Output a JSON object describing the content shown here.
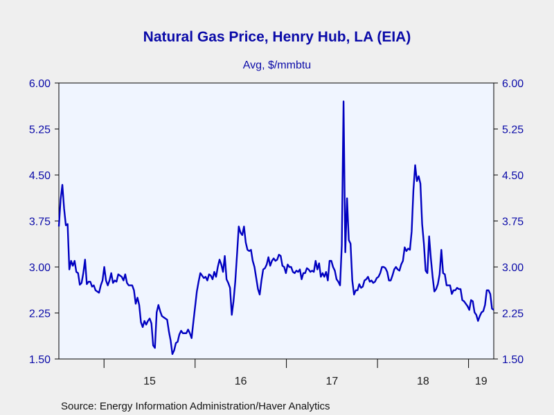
{
  "chart_data": {
    "type": "line",
    "title": "Natural Gas Price, Henry Hub, LA (EIA)",
    "subtitle": "Avg, $/mmbtu",
    "source": "Source:  Energy Information Administration/Haver Analytics",
    "ylim": [
      1.5,
      6.0
    ],
    "yticks": [
      "6.00",
      "5.25",
      "4.50",
      "3.75",
      "3.00",
      "2.25",
      "1.50"
    ],
    "x_tick_labels": [
      "15",
      "16",
      "17",
      "18",
      "19"
    ],
    "grid": false,
    "colors": {
      "line": "#0000c0",
      "plot_bg": "#f0f5ff",
      "text": "#0a0aa8",
      "page_bg": "#efefef"
    },
    "series": [
      {
        "frequency": "weekly",
        "start": "2014-07-04",
        "values": [
          3.66,
          4.1,
          4.34,
          3.95,
          3.68,
          3.7,
          2.96,
          3.1,
          3.02,
          3.1,
          2.92,
          2.9,
          2.71,
          2.74,
          2.9,
          3.12,
          2.72,
          2.76,
          2.76,
          2.68,
          2.7,
          2.62,
          2.6,
          2.58,
          2.7,
          2.78,
          3.0,
          2.78,
          2.7,
          2.78,
          2.9,
          2.74,
          2.78,
          2.76,
          2.88,
          2.86,
          2.84,
          2.78,
          2.88,
          2.74,
          2.7,
          2.7,
          2.7,
          2.62,
          2.4,
          2.5,
          2.38,
          2.1,
          2.02,
          2.12,
          2.06,
          2.12,
          2.16,
          2.08,
          1.72,
          1.68,
          2.26,
          2.38,
          2.28,
          2.2,
          2.18,
          2.16,
          2.14,
          1.95,
          1.8,
          1.58,
          1.64,
          1.76,
          1.78,
          1.9,
          1.96,
          1.92,
          1.92,
          1.92,
          1.98,
          1.92,
          1.84,
          2.1,
          2.35,
          2.6,
          2.76,
          2.9,
          2.86,
          2.82,
          2.84,
          2.78,
          2.88,
          2.86,
          2.8,
          2.92,
          2.84,
          3.0,
          3.12,
          3.04,
          2.92,
          3.18,
          2.8,
          2.74,
          2.66,
          2.22,
          2.44,
          2.76,
          3.2,
          3.66,
          3.56,
          3.52,
          3.66,
          3.4,
          3.28,
          3.26,
          3.28,
          3.1,
          3.0,
          2.82,
          2.64,
          2.55,
          2.78,
          2.96,
          2.98,
          3.04,
          3.16,
          3.02,
          3.1,
          3.14,
          3.1,
          3.12,
          3.2,
          3.18,
          3.02,
          3.0,
          2.9,
          3.04,
          3.0,
          3.0,
          2.92,
          2.9,
          2.94,
          2.92,
          2.96,
          2.8,
          2.9,
          2.9,
          2.98,
          2.96,
          2.92,
          2.94,
          2.92,
          3.1,
          2.96,
          3.06,
          2.84,
          2.9,
          2.84,
          2.92,
          2.78,
          3.1,
          3.1,
          3.0,
          2.94,
          2.8,
          2.76,
          2.7,
          3.36,
          5.7,
          3.24,
          4.12,
          3.44,
          3.38,
          2.78,
          2.55,
          2.62,
          2.62,
          2.72,
          2.66,
          2.68,
          2.78,
          2.8,
          2.84,
          2.76,
          2.78,
          2.74,
          2.76,
          2.82,
          2.84,
          2.9,
          3.0,
          3.0,
          2.98,
          2.92,
          2.78,
          2.78,
          2.86,
          2.96,
          3.0,
          2.96,
          2.94,
          3.04,
          3.1,
          3.32,
          3.26,
          3.3,
          3.28,
          3.58,
          4.25,
          4.66,
          4.4,
          4.48,
          4.36,
          3.7,
          3.38,
          2.94,
          2.9,
          3.5,
          3.14,
          2.84,
          2.6,
          2.64,
          2.72,
          2.88,
          3.28,
          2.9,
          2.88,
          2.7,
          2.7,
          2.7,
          2.56,
          2.62,
          2.62,
          2.66,
          2.64,
          2.64,
          2.46,
          2.44,
          2.4,
          2.36,
          2.3,
          2.46,
          2.44,
          2.26,
          2.22,
          2.12,
          2.2,
          2.26,
          2.28,
          2.38,
          2.62,
          2.62,
          2.56,
          2.32,
          2.3
        ]
      }
    ]
  }
}
